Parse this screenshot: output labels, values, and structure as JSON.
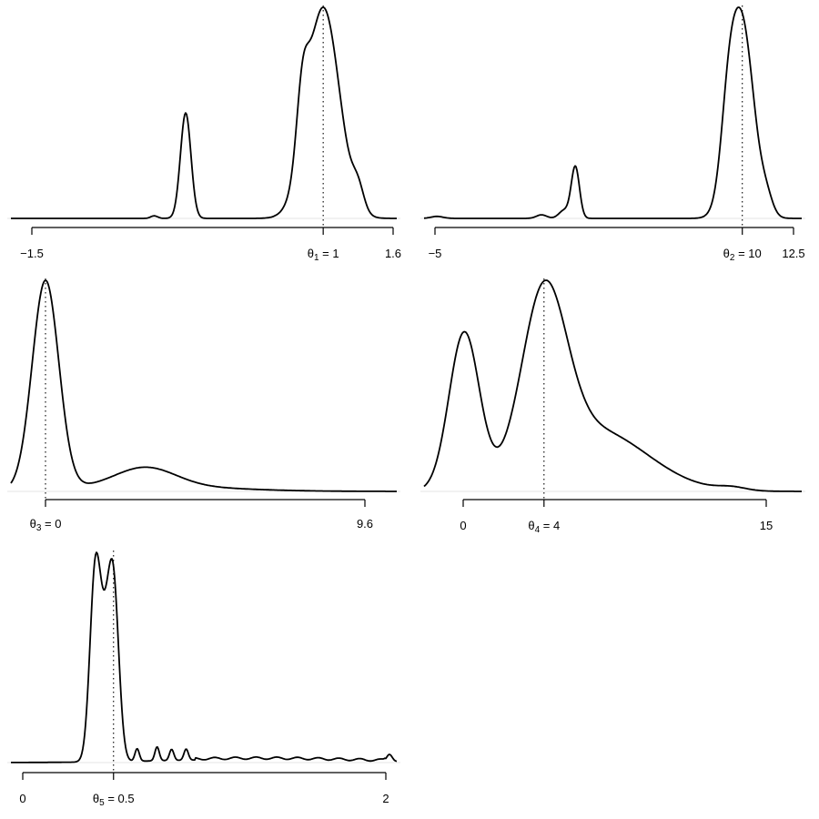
{
  "chart_data": [
    {
      "type": "line",
      "xlim": [
        -1.5,
        1.6
      ],
      "ticks": [
        {
          "value": -1.5,
          "label": "−1.5"
        },
        {
          "value": 1,
          "param": "1",
          "eq": "= 1"
        },
        {
          "value": 1.6,
          "label": "1.6"
        }
      ],
      "truth": 1,
      "peaks": [
        {
          "mu": 1.0,
          "sigma": 0.14,
          "amp": 1.0
        },
        {
          "mu": 0.82,
          "sigma": 0.05,
          "amp": 0.3
        },
        {
          "mu": 1.3,
          "sigma": 0.05,
          "amp": 0.1
        },
        {
          "mu": -0.18,
          "sigma": 0.045,
          "amp": 0.5
        },
        {
          "mu": -0.45,
          "sigma": 0.03,
          "amp": 0.012
        }
      ]
    },
    {
      "type": "line",
      "xlim": [
        -5,
        12.5
      ],
      "ticks": [
        {
          "value": -5,
          "label": "−5"
        },
        {
          "value": 10,
          "param": "2",
          "eq": "= 10"
        },
        {
          "value": 12.5,
          "label": "12.5"
        }
      ],
      "truth": 10,
      "peaks": [
        {
          "mu": 9.95,
          "sigma": 0.6,
          "amp": 1.0
        },
        {
          "mu": 9.3,
          "sigma": 0.35,
          "amp": 0.25
        },
        {
          "mu": 11.2,
          "sigma": 0.3,
          "amp": 0.07
        },
        {
          "mu": 1.85,
          "sigma": 0.2,
          "amp": 0.26
        },
        {
          "mu": 1.3,
          "sigma": 0.25,
          "amp": 0.04
        },
        {
          "mu": 0.2,
          "sigma": 0.25,
          "amp": 0.018
        },
        {
          "mu": -4.9,
          "sigma": 0.3,
          "amp": 0.01
        }
      ]
    },
    {
      "type": "line",
      "xlim": [
        0,
        9.6
      ],
      "ticks": [
        {
          "value": 0,
          "param": "3",
          "eq": "= 0"
        },
        {
          "value": 9.6,
          "label": "9.6"
        }
      ],
      "truth": 0,
      "peaks": [
        {
          "mu": 0.0,
          "sigma": 0.4,
          "amp": 1.0
        },
        {
          "mu": 3.0,
          "sigma": 0.9,
          "amp": 0.09
        },
        {
          "mu": 3.1,
          "sigma": 2.3,
          "amp": 0.026
        }
      ]
    },
    {
      "type": "line",
      "xlim": [
        0,
        15
      ],
      "ticks": [
        {
          "value": 0,
          "label": "0"
        },
        {
          "value": 4,
          "param": "4",
          "eq": "= 4"
        },
        {
          "value": 15,
          "label": "15"
        }
      ],
      "truth": 4,
      "peaks": [
        {
          "mu": 0.05,
          "sigma": 0.75,
          "amp": 0.82
        },
        {
          "mu": 4.0,
          "sigma": 1.1,
          "amp": 0.9
        },
        {
          "mu": 6.5,
          "sigma": 2.6,
          "amp": 0.32
        },
        {
          "mu": 13.3,
          "sigma": 0.7,
          "amp": 0.017
        }
      ]
    },
    {
      "type": "line",
      "xlim": [
        0,
        2
      ],
      "ticks": [
        {
          "value": 0,
          "label": "0"
        },
        {
          "value": 0.5,
          "param": "5",
          "eq": "= 0.5"
        },
        {
          "value": 2,
          "label": "2"
        }
      ],
      "truth": 0.5,
      "peaks": [
        {
          "mu": 0.4,
          "sigma": 0.03,
          "amp": 0.68
        },
        {
          "mu": 0.5,
          "sigma": 0.03,
          "amp": 0.6
        },
        {
          "mu": 0.455,
          "sigma": 0.03,
          "amp": 0.3
        },
        {
          "mu": 0.63,
          "sigma": 0.012,
          "amp": 0.045
        },
        {
          "mu": 0.74,
          "sigma": 0.012,
          "amp": 0.05
        },
        {
          "mu": 0.82,
          "sigma": 0.012,
          "amp": 0.04
        },
        {
          "mu": 0.9,
          "sigma": 0.012,
          "amp": 0.04
        },
        {
          "mu": 2.02,
          "sigma": 0.015,
          "amp": 0.025
        },
        {
          "mu": 1.3,
          "sigma": 0.5,
          "amp": 0.012
        }
      ],
      "ripple": 0.008
    }
  ]
}
